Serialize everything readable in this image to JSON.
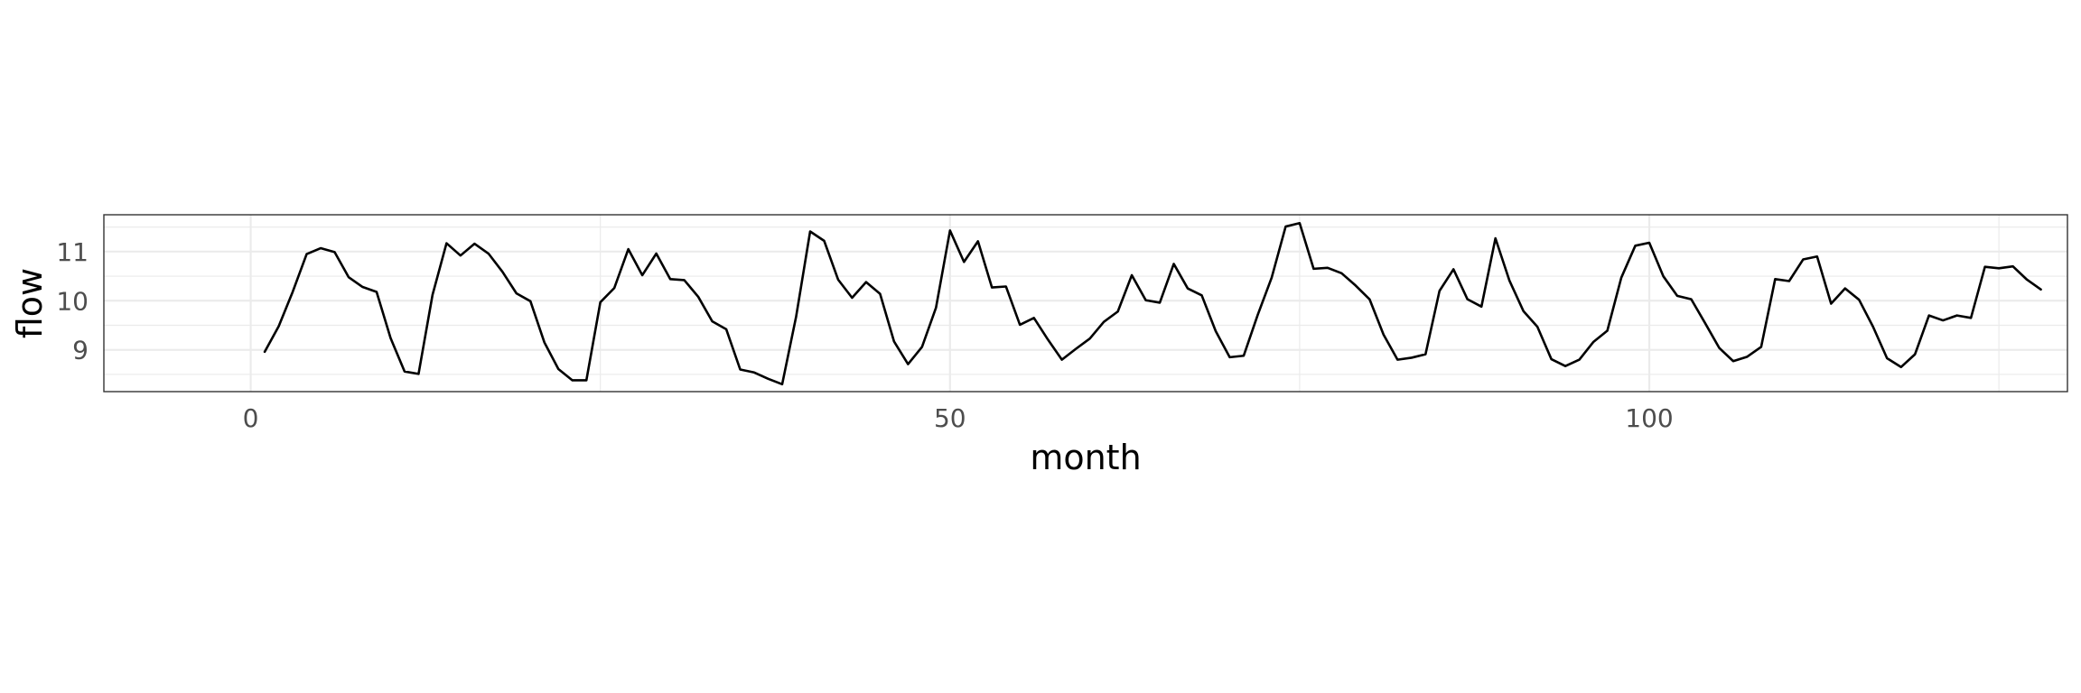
{
  "chart_data": {
    "type": "line",
    "title": "",
    "xlabel": "month",
    "ylabel": "flow",
    "xlim": [
      -10.5,
      129.9
    ],
    "ylim": [
      8.15,
      11.75
    ],
    "x_ticks": [
      0,
      50,
      100
    ],
    "x_tick_labels": [
      "0",
      "50",
      "100"
    ],
    "x_minor_ticks": [
      25,
      75,
      125
    ],
    "y_ticks": [
      9,
      10,
      11
    ],
    "y_tick_labels": [
      "9",
      "10",
      "11"
    ],
    "y_minor_ticks": [
      8.5,
      9.5,
      10.5,
      11.5
    ],
    "grid": true,
    "theme": "minimal",
    "legend": "none",
    "line_color": "#000000",
    "grid_color": "#ebebeb",
    "panel_border_color": "#333333",
    "series": [
      {
        "x": [
          1,
          2,
          3,
          4,
          5,
          6,
          7,
          8,
          9,
          10,
          11,
          12,
          13,
          14,
          15,
          16,
          17,
          18,
          19,
          20,
          21,
          22,
          23,
          24,
          25,
          26,
          27,
          28,
          29,
          30,
          31,
          32,
          33,
          34,
          35,
          36,
          37,
          38,
          39,
          40,
          41,
          42,
          43,
          44,
          45,
          46,
          47,
          48,
          49,
          50,
          51,
          52,
          53,
          54,
          55,
          56,
          57,
          58,
          59,
          60,
          61,
          62,
          63,
          64,
          65,
          66,
          67,
          68,
          69,
          70,
          71,
          72,
          73,
          74,
          75,
          76,
          77,
          78,
          79,
          80,
          81,
          82,
          83,
          84,
          85,
          86,
          87,
          88,
          89,
          90,
          91,
          92,
          93,
          94,
          95,
          96,
          97,
          98,
          99,
          100,
          101,
          102,
          103,
          104,
          105,
          106,
          107,
          108,
          109,
          110,
          111,
          112,
          113,
          114,
          115,
          116,
          117,
          118,
          119,
          120,
          121,
          122,
          123,
          124,
          125,
          126,
          127,
          128
        ],
        "y": [
          8.96,
          9.48,
          10.18,
          10.95,
          11.07,
          10.99,
          10.48,
          10.28,
          10.18,
          9.24,
          8.56,
          8.51,
          10.12,
          11.17,
          10.92,
          11.16,
          10.96,
          10.59,
          10.15,
          9.99,
          9.15,
          8.61,
          8.38,
          8.38,
          9.97,
          10.26,
          11.05,
          10.52,
          10.96,
          10.44,
          10.42,
          10.08,
          9.58,
          9.42,
          8.6,
          8.54,
          8.41,
          8.3,
          9.68,
          11.41,
          11.22,
          10.43,
          10.06,
          10.38,
          10.14,
          9.17,
          8.71,
          9.06,
          9.86,
          11.43,
          10.79,
          11.21,
          10.27,
          10.29,
          9.51,
          9.65,
          9.21,
          8.8,
          9.02,
          9.23,
          9.57,
          9.78,
          10.52,
          10.01,
          9.96,
          10.75,
          10.25,
          10.11,
          9.38,
          8.85,
          8.88,
          9.71,
          10.47,
          11.51,
          11.58,
          10.65,
          10.67,
          10.56,
          10.31,
          10.03,
          9.31,
          8.8,
          8.84,
          8.91,
          10.2,
          10.64,
          10.03,
          9.88,
          11.27,
          10.41,
          9.79,
          9.47,
          8.81,
          8.67,
          8.8,
          9.16,
          9.39,
          10.47,
          11.12,
          11.18,
          10.5,
          10.1,
          10.03,
          9.54,
          9.04,
          8.77,
          8.86,
          9.06,
          10.44,
          10.4,
          10.84,
          10.9,
          9.94,
          10.25,
          10.02,
          9.47,
          8.83,
          8.65,
          8.91,
          9.7,
          9.6,
          9.7,
          9.65,
          10.69,
          10.66,
          10.7,
          10.43,
          10.23
        ]
      }
    ]
  }
}
